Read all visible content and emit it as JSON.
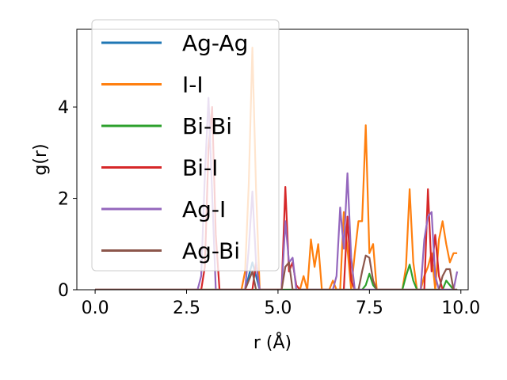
{
  "chart_data": {
    "type": "line",
    "title": "",
    "xlabel": "r (Å)",
    "ylabel": "g(r)",
    "xlim": [
      -0.5,
      10.2
    ],
    "ylim": [
      0,
      5.7
    ],
    "xticks": [
      0.0,
      2.5,
      5.0,
      7.5,
      10.0
    ],
    "xtick_labels": [
      "0.0",
      "2.5",
      "5.0",
      "7.5",
      "10.0"
    ],
    "yticks": [
      0,
      2,
      4
    ],
    "ytick_labels": [
      "0",
      "2",
      "4"
    ],
    "grid": false,
    "legend_position": "upper-left",
    "series": [
      {
        "name": "Ag-Ag",
        "color": "#1f77b4",
        "x": [
          0,
          4.1,
          4.2,
          4.3,
          4.4,
          4.5,
          9.9
        ],
        "y": [
          0,
          0,
          0.3,
          0.6,
          0.3,
          0,
          0
        ]
      },
      {
        "name": "I-I",
        "color": "#ff7f0e",
        "x": [
          0,
          4.0,
          4.1,
          4.2,
          4.3,
          4.4,
          4.5,
          5.5,
          5.6,
          5.7,
          5.8,
          5.9,
          6.0,
          6.1,
          6.2,
          6.3,
          6.4,
          6.5,
          6.6,
          6.7,
          6.8,
          6.9,
          7.0,
          7.1,
          7.2,
          7.3,
          7.4,
          7.5,
          7.6,
          7.7,
          7.8,
          7.9,
          8.0,
          8.1,
          8.2,
          8.3,
          8.4,
          8.5,
          8.6,
          8.7,
          8.8,
          8.9,
          9.0,
          9.1,
          9.2,
          9.3,
          9.4,
          9.5,
          9.6,
          9.7,
          9.8,
          9.9
        ],
        "y": [
          0,
          0,
          0.4,
          2.3,
          5.3,
          2.2,
          0,
          0,
          0,
          0.3,
          0,
          1.1,
          0.5,
          1.0,
          0,
          0,
          0,
          0.2,
          0,
          0,
          1.7,
          0.9,
          0,
          0.8,
          1.5,
          1.5,
          3.6,
          0.8,
          1.0,
          0,
          0,
          0,
          0,
          0,
          0,
          0,
          0,
          0.5,
          2.2,
          0.6,
          0,
          0,
          0.3,
          0.5,
          0.8,
          0,
          1.1,
          1.5,
          1.0,
          0.6,
          0.8,
          0.8
        ]
      },
      {
        "name": "Bi-Bi",
        "color": "#2ca02c",
        "x": [
          0,
          7.3,
          7.4,
          7.5,
          7.6,
          7.7,
          8.4,
          8.5,
          8.6,
          8.7,
          8.8,
          9.5,
          9.6,
          9.7,
          9.8,
          9.9
        ],
        "y": [
          0,
          0,
          0.1,
          0.35,
          0.1,
          0,
          0,
          0.3,
          0.55,
          0.2,
          0,
          0,
          0.2,
          0.1,
          0,
          0
        ]
      },
      {
        "name": "Bi-I",
        "color": "#d62728",
        "x": [
          0,
          2.9,
          3.0,
          3.1,
          3.2,
          3.3,
          3.4,
          4.3,
          4.4,
          4.5,
          5.1,
          5.2,
          5.3,
          5.4,
          5.5,
          5.6,
          6.8,
          6.9,
          7.0,
          7.1,
          9.0,
          9.1,
          9.2,
          9.3,
          9.4,
          9.5,
          9.9
        ],
        "y": [
          0,
          0,
          0.5,
          3.1,
          4.0,
          1.2,
          0,
          0,
          0.6,
          0,
          0,
          2.25,
          0.4,
          0.6,
          0.1,
          0,
          0,
          1.6,
          0.2,
          0,
          0,
          2.2,
          0.4,
          1.2,
          0.3,
          0,
          0
        ]
      },
      {
        "name": "Ag-I",
        "color": "#9467bd",
        "x": [
          0,
          2.8,
          2.9,
          3.0,
          3.1,
          3.2,
          3.3,
          4.1,
          4.2,
          4.3,
          4.4,
          4.5,
          5.1,
          5.2,
          5.3,
          5.4,
          5.5,
          6.5,
          6.6,
          6.7,
          6.8,
          6.9,
          7.0,
          7.1,
          8.9,
          9.0,
          9.1,
          9.2,
          9.3,
          9.4,
          9.8,
          9.9
        ],
        "y": [
          0,
          0,
          0.3,
          2.5,
          4.2,
          2.1,
          0,
          0,
          0.9,
          2.15,
          0.6,
          0,
          0,
          1.5,
          0.6,
          0.7,
          0,
          0,
          0.3,
          1.8,
          0.9,
          2.55,
          0.7,
          0,
          0,
          1.1,
          1.6,
          1.7,
          0.3,
          0,
          0,
          0.4
        ]
      },
      {
        "name": "Ag-Bi",
        "color": "#8c564b",
        "x": [
          0,
          4.1,
          4.2,
          4.3,
          4.4,
          5.1,
          5.2,
          5.3,
          5.4,
          7.2,
          7.3,
          7.4,
          7.5,
          7.6,
          7.7,
          9.4,
          9.5,
          9.6,
          9.7,
          9.8,
          9.9
        ],
        "y": [
          0,
          0,
          0.2,
          0.4,
          0,
          0,
          0.5,
          0.6,
          0,
          0,
          0.4,
          0.75,
          0.7,
          0.2,
          0,
          0,
          0.3,
          0.45,
          0.45,
          0,
          0
        ]
      }
    ]
  }
}
